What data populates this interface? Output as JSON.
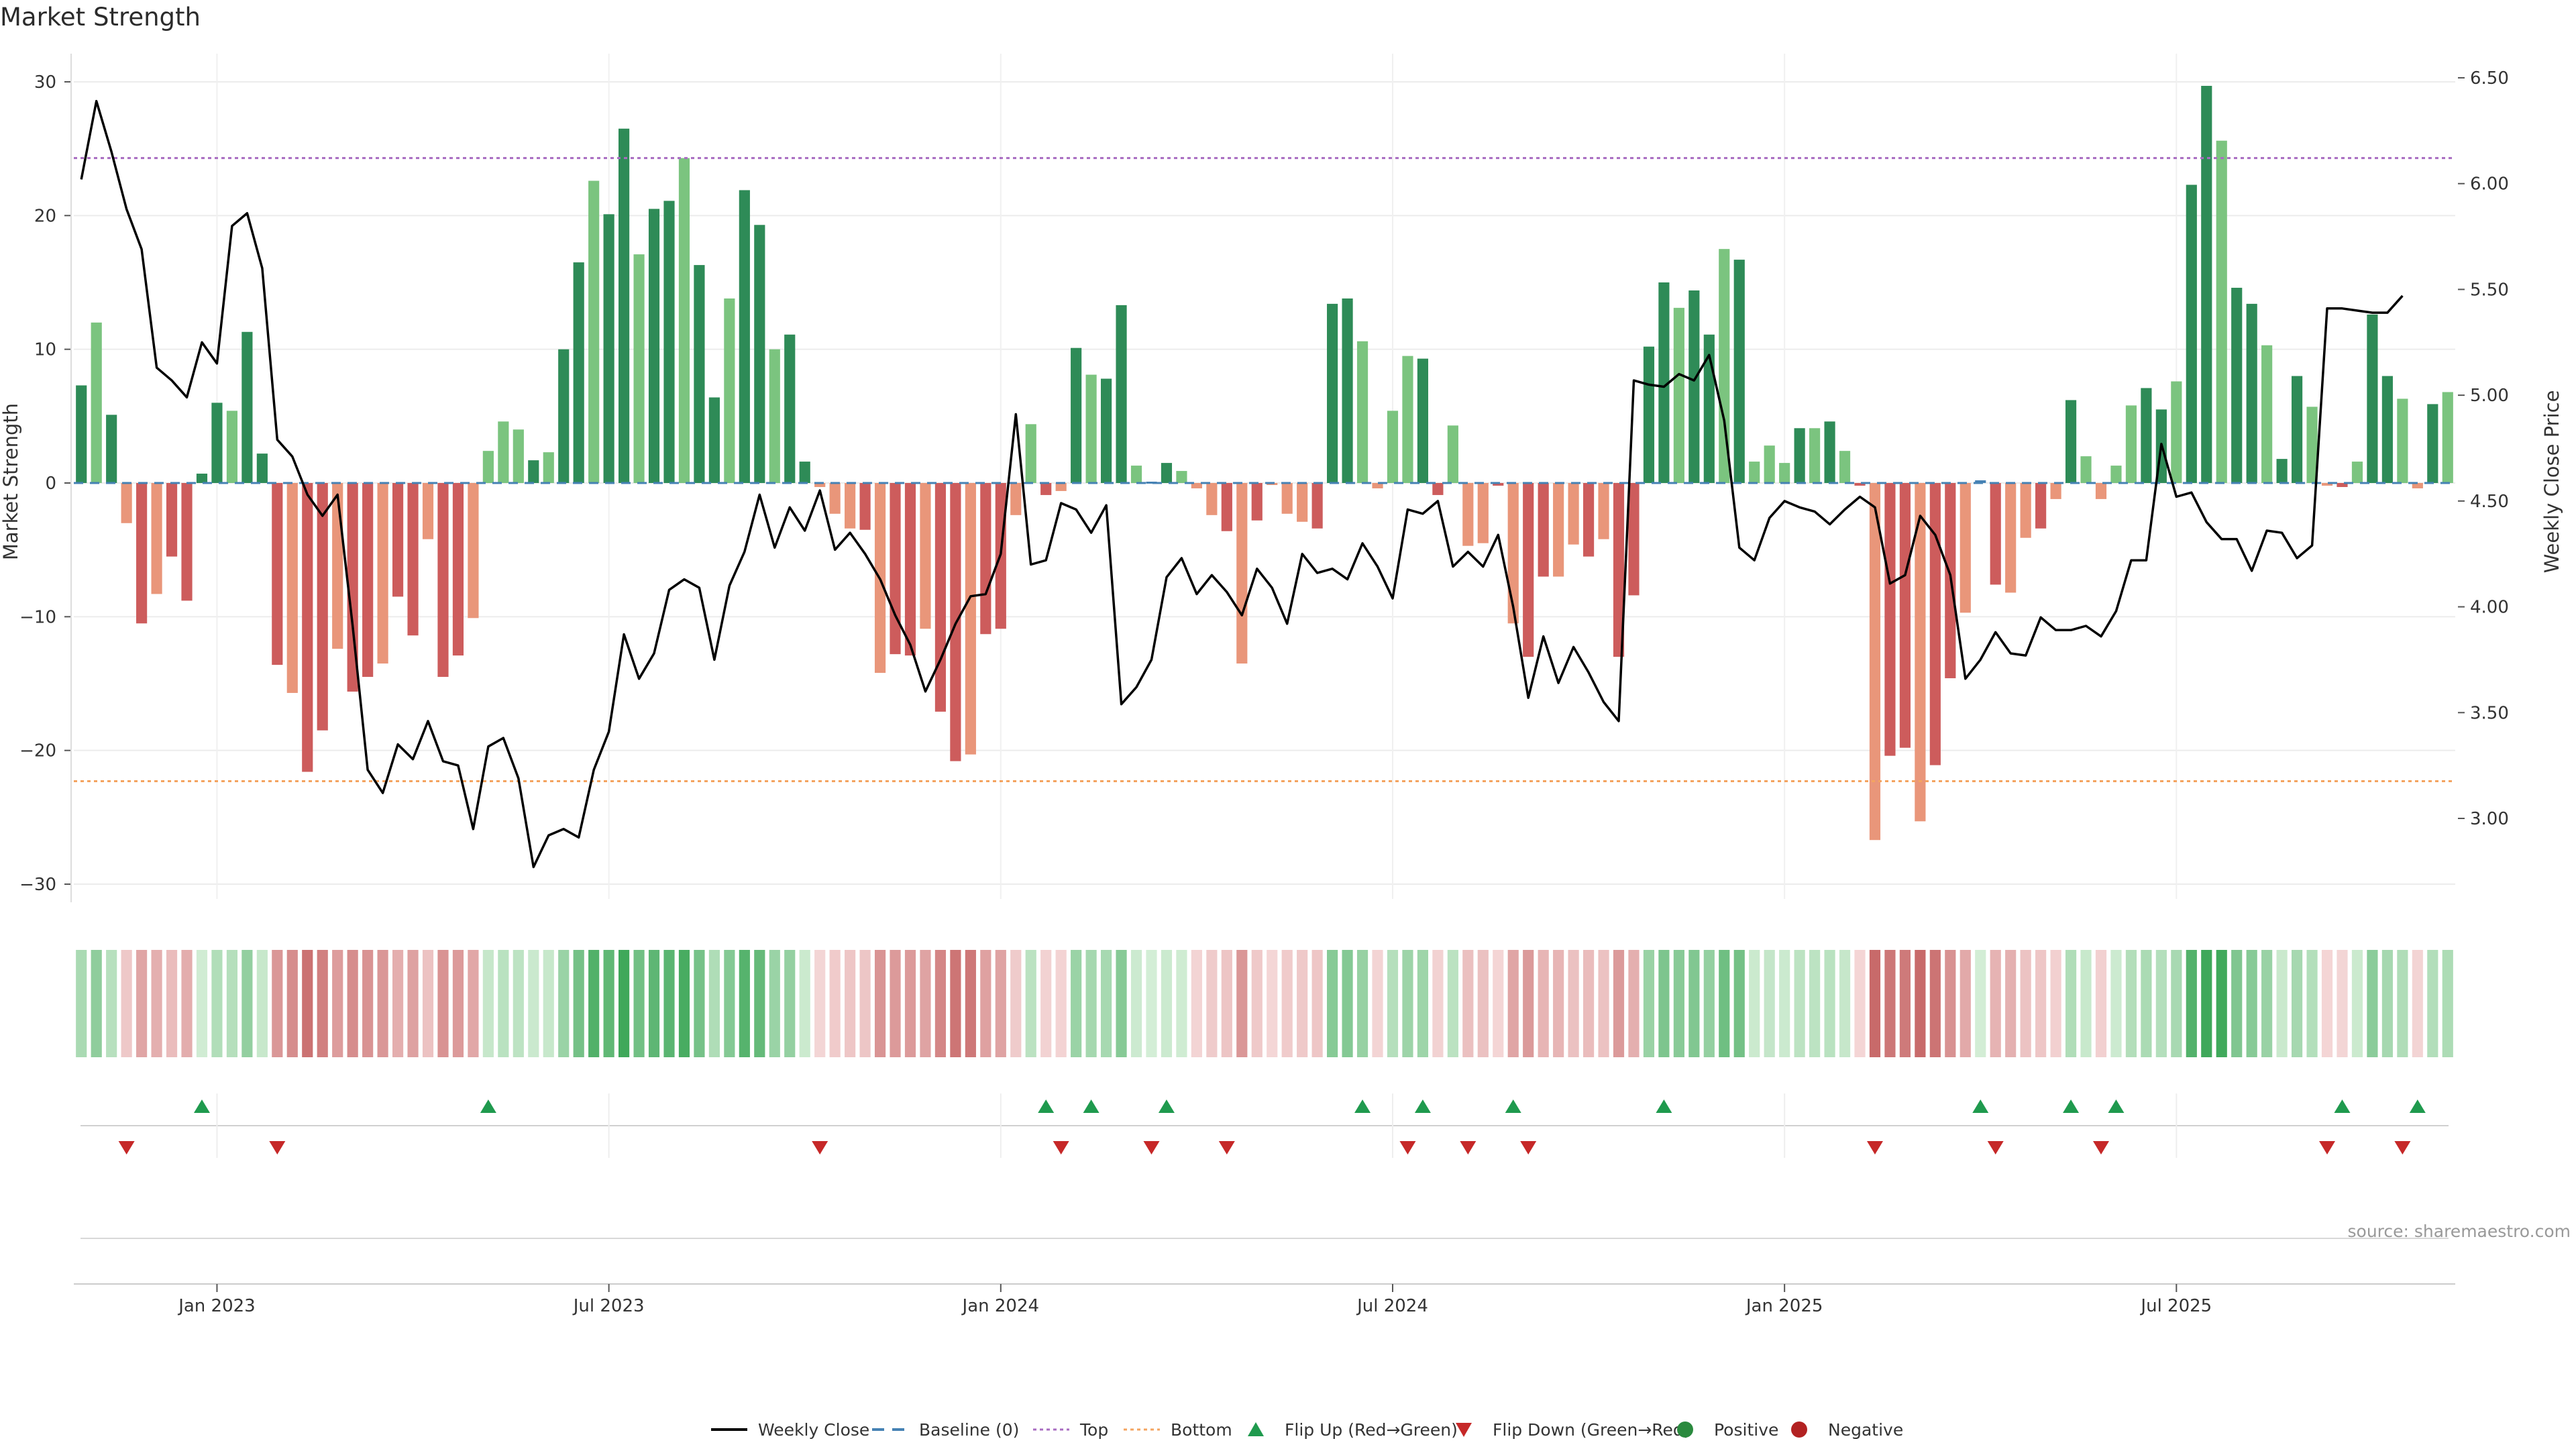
{
  "chart_data": {
    "type": "bar",
    "title": "Market Strength",
    "y_left_label": "Market Strength",
    "y_right_label": "Weekly Close Price",
    "source": "source: sharemaestro.com",
    "ylim_left": [
      -32,
      32
    ],
    "ylim_right": [
      2.6,
      6.6
    ],
    "left_ticks": [
      30,
      20,
      10,
      0,
      -10,
      -20,
      -30
    ],
    "left_tick_labels": [
      "30",
      "20",
      "10",
      "0",
      "−10",
      "−20",
      "−30"
    ],
    "right_ticks": [
      6.5,
      6.0,
      5.5,
      5.0,
      4.5,
      4.0,
      3.5,
      3.0
    ],
    "right_tick_labels": [
      "6.50",
      "6.00",
      "5.50",
      "5.00",
      "4.50",
      "4.00",
      "3.50",
      "3.00"
    ],
    "x_tick_labels": [
      "Jan 2023",
      "Jul 2023",
      "Jan 2024",
      "Jul 2024",
      "Jan 2025",
      "Jul 2025"
    ],
    "x_tick_week_index": [
      9.5,
      35.5,
      61.5,
      87.5,
      113.5,
      139.5
    ],
    "top_line": 24.3,
    "bottom_line": -22.3,
    "strength": [
      7.3,
      12,
      5.1,
      -3,
      -10.5,
      -8.3,
      -5.5,
      -8.8,
      0.7,
      6,
      5.4,
      11.3,
      2.2,
      -13.6,
      -15.7,
      -21.6,
      -18.5,
      -12.4,
      -15.6,
      -14.5,
      -13.5,
      -8.5,
      -11.4,
      -4.2,
      -14.5,
      -12.9,
      -10.1,
      2.4,
      4.6,
      4,
      1.7,
      2.3,
      10,
      16.5,
      22.6,
      20.1,
      26.5,
      17.1,
      20.5,
      21.1,
      24.3,
      16.3,
      6.4,
      13.8,
      21.9,
      19.3,
      10,
      11.1,
      1.6,
      -0.3,
      -2.3,
      -3.4,
      -3.5,
      -14.2,
      -12.8,
      -12.9,
      -10.9,
      -17.1,
      -20.8,
      -20.3,
      -11.3,
      -10.9,
      -2.4,
      4.4,
      -0.9,
      -0.6,
      10.1,
      8.1,
      7.8,
      13.3,
      1.3,
      0.1,
      1.5,
      0.9,
      -0.4,
      -2.4,
      -3.6,
      -13.5,
      -2.8,
      -0.1,
      -2.3,
      -2.9,
      -3.4,
      13.4,
      13.8,
      10.6,
      -0.4,
      5.4,
      9.5,
      9.3,
      -0.9,
      4.3,
      -4.7,
      -4.5,
      -0.2,
      -10.5,
      -13,
      -7,
      -7,
      -4.6,
      -5.5,
      -4.2,
      -13,
      -8.4,
      10.2,
      15,
      13.1,
      14.4,
      11.1,
      17.5,
      16.7,
      1.6,
      2.8,
      1.5,
      4.1,
      4.1,
      4.6,
      2.4,
      -0.2,
      -26.7,
      -20.4,
      -19.8,
      -25.3,
      -21.1,
      -14.6,
      -9.7,
      0.2,
      -7.6,
      -8.2,
      -4.1,
      -3.4,
      -1.2,
      6.2,
      2,
      -1.2,
      1.3,
      5.8,
      7.1,
      5.5,
      7.6,
      22.3,
      29.7,
      25.6,
      14.6,
      13.4,
      10.3,
      1.8,
      8,
      5.7,
      -0.2,
      -0.3,
      1.6,
      12.6,
      8,
      6.3,
      -0.4,
      5.9,
      6.8
    ],
    "weekly_close": [
      6.02,
      6.39,
      6.15,
      5.88,
      5.69,
      5.13,
      5.07,
      4.99,
      5.25,
      5.15,
      5.8,
      5.86,
      5.6,
      4.79,
      4.71,
      4.53,
      4.43,
      4.53,
      3.91,
      3.23,
      3.12,
      3.35,
      3.28,
      3.46,
      3.27,
      3.25,
      2.95,
      3.34,
      3.38,
      3.19,
      2.77,
      2.92,
      2.95,
      2.91,
      3.23,
      3.41,
      3.87,
      3.66,
      3.78,
      4.08,
      4.13,
      4.09,
      3.75,
      4.1,
      4.26,
      4.53,
      4.28,
      4.47,
      4.36,
      4.55,
      4.27,
      4.35,
      4.25,
      4.13,
      3.96,
      3.82,
      3.6,
      3.75,
      3.92,
      4.05,
      4.06,
      4.25,
      4.91,
      4.2,
      4.22,
      4.49,
      4.46,
      4.35,
      4.48,
      3.54,
      3.62,
      3.75,
      4.14,
      4.23,
      4.06,
      4.15,
      4.07,
      3.96,
      4.18,
      4.09,
      3.92,
      4.25,
      4.16,
      4.18,
      4.13,
      4.3,
      4.19,
      4.04,
      4.46,
      4.44,
      4.5,
      4.19,
      4.26,
      4.19,
      4.34,
      4.0,
      3.57,
      3.86,
      3.64,
      3.81,
      3.69,
      3.55,
      3.46,
      5.07,
      5.05,
      5.04,
      5.1,
      5.07,
      5.19,
      4.88,
      4.28,
      4.22,
      4.42,
      4.5,
      4.47,
      4.45,
      4.39,
      4.46,
      4.52,
      4.47,
      4.11,
      4.15,
      4.43,
      4.34,
      4.15,
      3.66,
      3.75,
      3.88,
      3.78,
      3.77,
      3.95,
      3.89,
      3.89,
      3.91,
      3.86,
      3.98,
      4.22,
      4.22,
      4.77,
      4.52,
      4.54,
      4.4,
      4.32,
      4.32,
      4.17,
      4.36,
      4.35,
      4.23,
      4.29,
      5.41,
      5.41,
      5.4,
      5.39,
      5.39,
      5.47
    ],
    "flip_up_weeks": [
      8,
      27,
      64,
      67,
      72,
      85,
      89,
      95,
      105,
      126,
      132,
      135,
      150,
      155
    ],
    "flip_down_weeks": [
      3,
      13,
      49,
      65,
      71,
      76,
      88,
      92,
      96,
      119,
      127,
      134,
      149,
      154
    ],
    "colors": {
      "pos_dark": "#2e8b57",
      "pos_light": "#7bc47f",
      "neg_dark": "#cd5c5c",
      "neg_light": "#e9967a",
      "top_line": "#a86cc1",
      "bottom_line": "#f4a460",
      "baseline": "#4682b4",
      "price_line": "#000000",
      "flip_up": "#1f9a4e",
      "flip_down": "#c62828"
    },
    "legend": [
      {
        "label": "Weekly Close",
        "kind": "line"
      },
      {
        "label": "Baseline (0)",
        "kind": "dash"
      },
      {
        "label": "Top",
        "kind": "dotted-top"
      },
      {
        "label": "Bottom",
        "kind": "dotted-bottom"
      },
      {
        "label": "Flip Up (Red→Green)",
        "kind": "tri-up"
      },
      {
        "label": "Flip Down (Green→Red)",
        "kind": "tri-down"
      },
      {
        "label": "Positive",
        "kind": "dot-pos"
      },
      {
        "label": "Negative",
        "kind": "dot-neg"
      }
    ]
  }
}
